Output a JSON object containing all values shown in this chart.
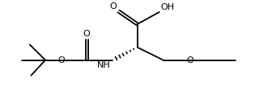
{
  "bg_color": "#ffffff",
  "line_color": "#000000",
  "lw": 1.3,
  "fig_width": 3.2,
  "fig_height": 1.08,
  "dpi": 100,
  "xlim": [
    0,
    10
  ],
  "ylim": [
    0,
    3.375
  ]
}
